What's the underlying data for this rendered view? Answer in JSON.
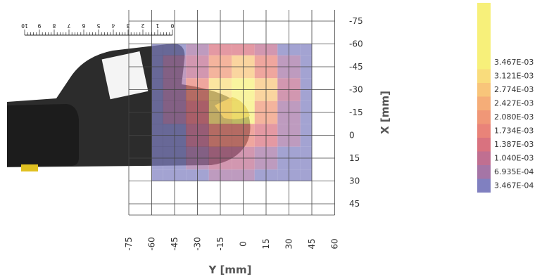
{
  "chart_data": {
    "type": "heatmap",
    "xlabel": "Y [mm]",
    "ylabel": "X [mm]",
    "x_ticks": [
      "-75",
      "-60",
      "-45",
      "-30",
      "-15",
      "0",
      "15",
      "30",
      "45",
      "60"
    ],
    "y_ticks": [
      "-75",
      "-60",
      "-45",
      "-30",
      "-15",
      "0",
      "15",
      "30",
      "45"
    ],
    "x_values": [
      -60,
      -45,
      -30,
      -15,
      0,
      15,
      30,
      45
    ],
    "y_values": [
      -60,
      -45,
      -30,
      -15,
      0,
      15,
      30
    ],
    "z_matrix": [
      [
        0.00035,
        0.00055,
        0.0009,
        0.0013,
        0.0015,
        0.001,
        0.0006,
        0.00045
      ],
      [
        0.0004,
        0.0007,
        0.0012,
        0.0022,
        0.0026,
        0.0018,
        0.0009,
        0.0005
      ],
      [
        0.00045,
        0.0009,
        0.0016,
        0.0031,
        0.0034,
        0.0026,
        0.0011,
        0.0006
      ],
      [
        0.0004,
        0.0008,
        0.0015,
        0.0029,
        0.0032,
        0.0022,
        0.0009,
        0.0005
      ],
      [
        0.00035,
        0.0006,
        0.0011,
        0.0018,
        0.0019,
        0.0013,
        0.0007,
        0.0004
      ],
      [
        0.0003,
        0.0005,
        0.0008,
        0.0011,
        0.0012,
        0.0008,
        0.0005,
        0.00035
      ],
      [
        0.0003,
        0.0004,
        0.0006,
        0.0007,
        0.0007,
        0.0006,
        0.0004,
        0.0003
      ]
    ],
    "legend_labels": [
      "3.467E-03",
      "3.121E-03",
      "2.774E-03",
      "2.427E-03",
      "2.080E-03",
      "1.734E-03",
      "1.387E-03",
      "1.040E-03",
      "6.935E-04",
      "3.467E-04"
    ],
    "legend_colors": [
      "#f7f07a",
      "#f9dc7c",
      "#f8c57a",
      "#f5ad78",
      "#f09777",
      "#e98379",
      "#d9727f",
      "#c06f91",
      "#a575a6",
      "#8080c0"
    ],
    "legend_top_color": "#f7f07a",
    "legend_placement": "right",
    "grid": true,
    "ruler_labels": [
      "10",
      "9",
      "8",
      "7",
      "6",
      "5",
      "4",
      "3",
      "2",
      "1",
      "0"
    ]
  }
}
